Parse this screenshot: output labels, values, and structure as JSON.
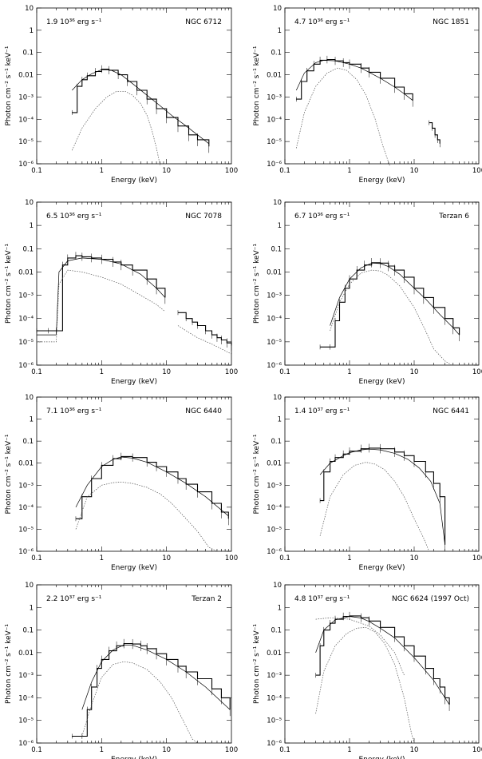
{
  "figure": {
    "xlabel": "Energy (keV)",
    "ylabel": "Photon cm⁻² s⁻¹ keV⁻¹",
    "x_ticks": [
      "0.1",
      "1",
      "10",
      "100"
    ],
    "y_ticks": [
      "10",
      "1",
      "0.1",
      "0.01",
      "10⁻³",
      "10⁻⁴",
      "10⁻⁵",
      "10⁻⁶"
    ],
    "colors": {
      "axis": "#000000",
      "data": "#000000",
      "model": "#000000",
      "component": "#555555"
    }
  },
  "chart_data": [
    {
      "type": "line",
      "luminosity": "1.9 10³⁶ erg s⁻¹",
      "source": "NGC 6712",
      "xlim": [
        0.1,
        100
      ],
      "ylim": [
        1e-06,
        10
      ],
      "log_x": true,
      "log_y": true,
      "series": [
        {
          "style": "data",
          "x": [
            0.35,
            0.42,
            0.5,
            0.6,
            0.8,
            1.0,
            1.3,
            1.8,
            2.5,
            3.5,
            5,
            7,
            10,
            15,
            22,
            30,
            45
          ],
          "y": [
            0.0002,
            0.003,
            0.006,
            0.009,
            0.014,
            0.018,
            0.016,
            0.01,
            0.005,
            0.002,
            0.0008,
            0.0003,
            0.00012,
            5e-05,
            2e-05,
            1.2e-05,
            6e-06
          ]
        },
        {
          "style": "model",
          "x": [
            0.35,
            0.5,
            0.7,
            1.0,
            1.4,
            2,
            3,
            5,
            8,
            12,
            20,
            30,
            45
          ],
          "y": [
            0.002,
            0.006,
            0.011,
            0.017,
            0.016,
            0.01,
            0.004,
            0.0012,
            0.0004,
            0.00015,
            5e-05,
            2e-05,
            8e-06
          ]
        },
        {
          "style": "component",
          "x": [
            0.35,
            0.5,
            0.8,
            1.2,
            1.7,
            2.3,
            3,
            4,
            5,
            6,
            7,
            8
          ],
          "y": [
            4e-06,
            4e-05,
            0.0003,
            0.001,
            0.0018,
            0.0018,
            0.0012,
            0.0005,
            0.00015,
            3e-05,
            5e-06,
            8e-07
          ]
        }
      ]
    },
    {
      "type": "line",
      "luminosity": "4.7 10³⁶ erg s⁻¹",
      "source": "NGC 1851",
      "xlim": [
        0.1,
        100
      ],
      "ylim": [
        1e-06,
        10
      ],
      "log_x": true,
      "log_y": true,
      "series": [
        {
          "style": "data",
          "x": [
            0.15,
            0.18,
            0.22,
            0.28,
            0.35,
            0.45,
            0.6,
            0.8,
            1.0,
            1.5,
            2,
            3,
            5,
            7,
            9.5
          ],
          "y": [
            0.0008,
            0.005,
            0.015,
            0.03,
            0.045,
            0.048,
            0.042,
            0.035,
            0.03,
            0.02,
            0.013,
            0.007,
            0.0028,
            0.0014,
            0.0007
          ]
        },
        {
          "style": "data",
          "x": [
            17,
            19,
            21,
            23,
            25
          ],
          "y": [
            7e-05,
            4e-05,
            2e-05,
            1.2e-05,
            8e-06
          ]
        },
        {
          "style": "model",
          "x": [
            0.15,
            0.2,
            0.3,
            0.4,
            0.6,
            1.0,
            1.5,
            2,
            3,
            5,
            7,
            9.5
          ],
          "y": [
            0.002,
            0.012,
            0.035,
            0.045,
            0.042,
            0.03,
            0.02,
            0.013,
            0.007,
            0.0028,
            0.0014,
            0.0007
          ]
        },
        {
          "style": "component",
          "x": [
            0.15,
            0.2,
            0.3,
            0.45,
            0.65,
            0.9,
            1.3,
            1.8,
            2.5,
            3.3,
            4.2
          ],
          "y": [
            5e-06,
            0.0002,
            0.003,
            0.012,
            0.02,
            0.016,
            0.006,
            0.0012,
            0.0001,
            6e-06,
            8e-07
          ]
        }
      ]
    },
    {
      "type": "line",
      "luminosity": "6.5 10³⁶ erg s⁻¹",
      "source": "NGC 7078",
      "xlim": [
        0.1,
        100
      ],
      "ylim": [
        1e-06,
        10
      ],
      "log_x": true,
      "log_y": true,
      "series": [
        {
          "style": "data",
          "x": [
            0.1,
            0.15,
            0.2,
            0.25,
            0.3,
            0.4,
            0.5,
            0.7,
            1.0,
            1.5,
            2,
            3,
            5,
            7,
            9.5
          ],
          "y": [
            3e-05,
            3e-05,
            3e-05,
            0.02,
            0.04,
            0.05,
            0.045,
            0.04,
            0.035,
            0.027,
            0.02,
            0.012,
            0.005,
            0.002,
            0.0008
          ]
        },
        {
          "style": "data",
          "x": [
            15,
            20,
            25,
            30,
            40,
            50,
            60,
            70,
            85,
            100
          ],
          "y": [
            0.00018,
            0.0001,
            7e-05,
            5e-05,
            3e-05,
            2e-05,
            1.5e-05,
            1.2e-05,
            9e-06,
            7e-06
          ]
        },
        {
          "style": "model",
          "x": [
            0.1,
            0.2,
            0.22,
            0.3,
            0.5,
            1.0,
            2,
            4,
            7,
            9.5
          ],
          "y": [
            2e-05,
            2e-05,
            0.01,
            0.03,
            0.04,
            0.035,
            0.022,
            0.008,
            0.002,
            0.0008
          ]
        },
        {
          "style": "component",
          "x": [
            0.1,
            0.2,
            0.22,
            0.3,
            0.5,
            1.0,
            2,
            4,
            7,
            9.5
          ],
          "y": [
            1e-05,
            1e-05,
            0.003,
            0.012,
            0.01,
            0.006,
            0.003,
            0.001,
            0.0004,
            0.0002
          ]
        },
        {
          "style": "component",
          "x": [
            15,
            20,
            30,
            50,
            70,
            100
          ],
          "y": [
            5e-05,
            3e-05,
            1.5e-05,
            8e-06,
            5e-06,
            3e-06
          ]
        }
      ]
    },
    {
      "type": "line",
      "luminosity": "6.7 10³⁶ erg s⁻¹",
      "source": "Terzan 6",
      "xlim": [
        0.1,
        100
      ],
      "ylim": [
        1e-06,
        10
      ],
      "log_x": true,
      "log_y": true,
      "series": [
        {
          "style": "data",
          "x": [
            0.35,
            0.5,
            0.6,
            0.7,
            0.85,
            1.0,
            1.3,
            1.7,
            2.2,
            3,
            4,
            5,
            7,
            10,
            14,
            20,
            30,
            40,
            50
          ],
          "y": [
            6e-06,
            6e-06,
            8e-05,
            0.0005,
            0.002,
            0.005,
            0.012,
            0.02,
            0.025,
            0.024,
            0.018,
            0.012,
            0.006,
            0.002,
            0.0008,
            0.0003,
            0.0001,
            4e-05,
            2e-05
          ]
        },
        {
          "style": "model",
          "x": [
            0.5,
            0.7,
            1.0,
            1.5,
            2.2,
            3,
            4,
            6,
            10,
            15,
            25,
            40,
            50
          ],
          "y": [
            5e-05,
            0.0008,
            0.005,
            0.015,
            0.024,
            0.023,
            0.017,
            0.008,
            0.002,
            0.0007,
            0.00015,
            4e-05,
            2e-05
          ]
        },
        {
          "style": "component",
          "x": [
            0.5,
            0.7,
            1.0,
            1.5,
            2.2,
            3,
            4,
            6,
            10,
            15,
            20,
            30,
            38
          ],
          "y": [
            3e-05,
            0.0005,
            0.003,
            0.009,
            0.012,
            0.011,
            0.007,
            0.0025,
            0.0003,
            3e-05,
            5e-06,
            1.5e-06,
            1e-06
          ]
        }
      ]
    },
    {
      "type": "line",
      "luminosity": "7.1 10³⁶ erg s⁻¹",
      "source": "NGC 6440",
      "xlim": [
        0.1,
        100
      ],
      "ylim": [
        1e-06,
        10
      ],
      "log_x": true,
      "log_y": true,
      "series": [
        {
          "style": "data",
          "x": [
            0.4,
            0.5,
            0.7,
            1.0,
            1.5,
            2,
            3,
            5,
            7,
            10,
            15,
            20,
            30,
            50,
            70,
            90
          ],
          "y": [
            3e-05,
            0.0003,
            0.002,
            0.008,
            0.016,
            0.02,
            0.018,
            0.011,
            0.007,
            0.004,
            0.002,
            0.0011,
            0.0005,
            0.00015,
            6e-05,
            3e-05
          ]
        },
        {
          "style": "model",
          "x": [
            0.4,
            0.6,
            1.0,
            1.5,
            2,
            3,
            5,
            10,
            20,
            40,
            90
          ],
          "y": [
            0.0001,
            0.001,
            0.007,
            0.015,
            0.019,
            0.017,
            0.011,
            0.004,
            0.0012,
            0.0003,
            4e-05
          ]
        },
        {
          "style": "component",
          "x": [
            0.4,
            0.6,
            1.0,
            1.5,
            2,
            3,
            5,
            8,
            12,
            20,
            30,
            45,
            60
          ],
          "y": [
            1e-05,
            0.0003,
            0.001,
            0.0013,
            0.0014,
            0.0012,
            0.0008,
            0.0004,
            0.00015,
            3e-05,
            8e-06,
            1.5e-06,
            1e-06
          ]
        }
      ]
    },
    {
      "type": "line",
      "luminosity": "1.4 10³⁷ erg s⁻¹",
      "source": "NGC 6441",
      "xlim": [
        0.1,
        100
      ],
      "ylim": [
        1e-06,
        10
      ],
      "log_x": true,
      "log_y": true,
      "series": [
        {
          "style": "data",
          "x": [
            0.35,
            0.4,
            0.5,
            0.6,
            0.8,
            1.0,
            1.5,
            2,
            3,
            5,
            7,
            10,
            15,
            20,
            25,
            30
          ],
          "y": [
            0.0002,
            0.004,
            0.012,
            0.018,
            0.026,
            0.035,
            0.045,
            0.048,
            0.045,
            0.032,
            0.022,
            0.012,
            0.004,
            0.0012,
            0.0003,
            2e-06
          ]
        },
        {
          "style": "model",
          "x": [
            0.35,
            0.5,
            0.8,
            1.0,
            1.5,
            2,
            3,
            5,
            8,
            12,
            18,
            25,
            30
          ],
          "y": [
            0.003,
            0.01,
            0.022,
            0.03,
            0.04,
            0.043,
            0.04,
            0.028,
            0.015,
            0.006,
            0.0015,
            0.00015,
            2e-06
          ]
        },
        {
          "style": "component",
          "x": [
            0.35,
            0.5,
            0.8,
            1.2,
            1.8,
            2.5,
            3.5,
            5,
            7,
            10,
            14,
            17
          ],
          "y": [
            5e-06,
            0.0003,
            0.003,
            0.008,
            0.011,
            0.009,
            0.005,
            0.0015,
            0.0003,
            3e-05,
            4e-06,
            1e-06
          ]
        }
      ]
    },
    {
      "type": "line",
      "luminosity": "2.2 10³⁷ erg s⁻¹",
      "source": "Terzan 2",
      "xlim": [
        0.1,
        100
      ],
      "ylim": [
        1e-06,
        10
      ],
      "log_x": true,
      "log_y": true,
      "series": [
        {
          "style": "data",
          "x": [
            0.35,
            0.5,
            0.6,
            0.7,
            0.85,
            1.0,
            1.3,
            1.7,
            2.2,
            3,
            4,
            5,
            7,
            10,
            15,
            20,
            30,
            50,
            70,
            95
          ],
          "y": [
            2e-06,
            2e-06,
            3e-05,
            0.0003,
            0.002,
            0.005,
            0.012,
            0.02,
            0.025,
            0.024,
            0.02,
            0.015,
            0.009,
            0.005,
            0.0025,
            0.0014,
            0.0007,
            0.00025,
            0.0001,
            3e-05
          ]
        },
        {
          "style": "model",
          "x": [
            0.5,
            0.7,
            1.0,
            1.5,
            2.2,
            3,
            5,
            10,
            20,
            40,
            95
          ],
          "y": [
            3e-05,
            0.0005,
            0.004,
            0.013,
            0.022,
            0.021,
            0.013,
            0.005,
            0.0014,
            0.0003,
            3e-05
          ]
        },
        {
          "style": "component",
          "x": [
            0.5,
            0.7,
            1.0,
            1.5,
            2.2,
            3,
            5,
            8,
            12,
            18,
            25,
            30
          ],
          "y": [
            2e-06,
            5e-05,
            0.0008,
            0.003,
            0.004,
            0.0035,
            0.0018,
            0.0005,
            0.0001,
            1e-05,
            1.5e-06,
            1e-06
          ]
        }
      ]
    },
    {
      "type": "line",
      "luminosity": "4.8 10³⁷ erg s⁻¹",
      "source": "NGC 6624 (1997 Oct)",
      "xlim": [
        0.1,
        100
      ],
      "ylim": [
        1e-06,
        10
      ],
      "log_x": true,
      "log_y": true,
      "series": [
        {
          "style": "data",
          "x": [
            0.3,
            0.35,
            0.4,
            0.5,
            0.6,
            0.8,
            1.0,
            1.5,
            2,
            3,
            5,
            7,
            10,
            15,
            20,
            25,
            30,
            35
          ],
          "y": [
            0.001,
            0.02,
            0.1,
            0.2,
            0.3,
            0.4,
            0.42,
            0.35,
            0.25,
            0.13,
            0.05,
            0.02,
            0.007,
            0.002,
            0.0007,
            0.0003,
            0.0001,
            5e-05
          ]
        },
        {
          "style": "model",
          "x": [
            0.3,
            0.4,
            0.6,
            1.0,
            1.5,
            2,
            3,
            5,
            10,
            20,
            35
          ],
          "y": [
            0.01,
            0.1,
            0.28,
            0.4,
            0.34,
            0.24,
            0.12,
            0.045,
            0.006,
            0.0006,
            5e-05
          ]
        },
        {
          "style": "component",
          "x": [
            0.3,
            0.4,
            0.6,
            0.9,
            1.3,
            1.8,
            2.5,
            3.5,
            5,
            7,
            9,
            10
          ],
          "y": [
            2e-05,
            0.0015,
            0.02,
            0.07,
            0.12,
            0.13,
            0.08,
            0.025,
            0.003,
            0.0001,
            3e-06,
            1e-06
          ]
        },
        {
          "style": "component",
          "x": [
            0.3,
            0.5,
            1.0,
            2,
            3,
            5,
            7
          ],
          "y": [
            0.3,
            0.35,
            0.3,
            0.15,
            0.06,
            0.01,
            0.001
          ]
        }
      ]
    }
  ]
}
